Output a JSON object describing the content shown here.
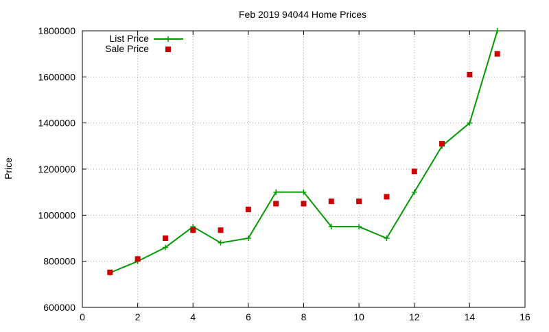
{
  "chart_data": {
    "type": "line",
    "title": "Feb 2019 94044 Home Prices",
    "xlabel": "",
    "ylabel": "Price",
    "xlim": [
      0,
      16
    ],
    "ylim": [
      600000,
      1800000
    ],
    "xticks": [
      0,
      2,
      4,
      6,
      8,
      10,
      12,
      14,
      16
    ],
    "yticks": [
      600000,
      800000,
      1000000,
      1200000,
      1400000,
      1600000,
      1800000
    ],
    "grid": true,
    "legend_position": "top-left",
    "series": [
      {
        "name": "List Price",
        "style": "line-with-plus-markers",
        "color": "#009900",
        "x": [
          1,
          2,
          3,
          4,
          5,
          6,
          7,
          8,
          9,
          10,
          11,
          12,
          13,
          14,
          15
        ],
        "y": [
          750000,
          800000,
          860000,
          950000,
          880000,
          900000,
          1100000,
          1100000,
          950000,
          950000,
          900000,
          1100000,
          1300000,
          1400000,
          1800000
        ]
      },
      {
        "name": "Sale Price",
        "style": "square-markers",
        "color": "#cc0000",
        "x": [
          1,
          2,
          3,
          4,
          5,
          6,
          7,
          8,
          9,
          10,
          11,
          12,
          13,
          14,
          15
        ],
        "y": [
          752000,
          810000,
          900000,
          935000,
          935000,
          1025000,
          1050000,
          1050000,
          1060000,
          1060000,
          1080000,
          1190000,
          1310000,
          1610000,
          1700000
        ]
      }
    ]
  }
}
